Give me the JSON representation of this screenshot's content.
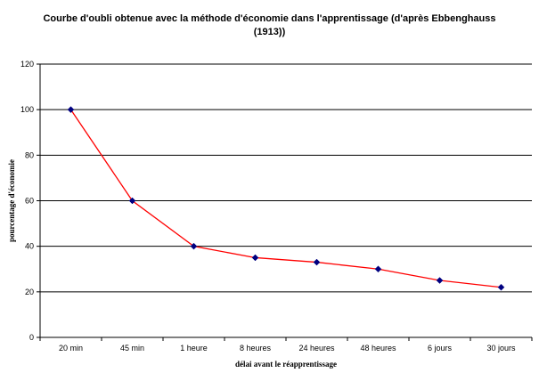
{
  "chart_data": {
    "type": "line",
    "title": "Courbe d'oubli obtenue avec la méthode d'économie dans l'apprentissage (d'après Ebbenghauss (1913))",
    "xlabel": "délai avant le réapprentissage",
    "ylabel": "pourcentage d'économie",
    "categories": [
      "20 min",
      "45 min",
      "1 heure",
      "8 heures",
      "24 heures",
      "48 heures",
      "6 jours",
      "30 jours"
    ],
    "series": [
      {
        "values": [
          100,
          60,
          40,
          35,
          33,
          30,
          25,
          22
        ]
      }
    ],
    "ylim": [
      0,
      120
    ],
    "yticks": [
      0,
      20,
      40,
      60,
      80,
      100,
      120
    ],
    "grid": true,
    "legend": "none",
    "colors": {
      "line": "#ff0000",
      "marker": "#000080",
      "grid": "#000000"
    }
  }
}
